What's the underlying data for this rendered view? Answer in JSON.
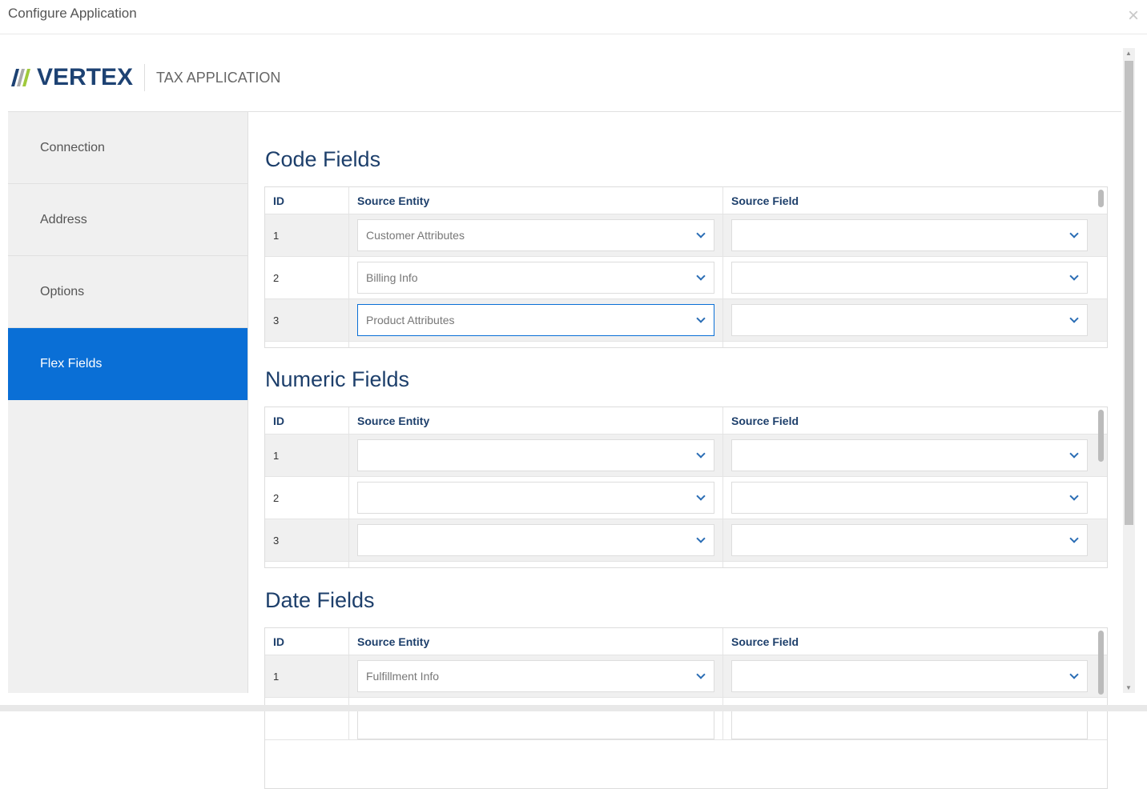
{
  "window": {
    "title": "Configure Application",
    "close": "×"
  },
  "brand": {
    "logo_text": "VERTEX",
    "app_name": "TAX APPLICATION"
  },
  "sidebar": {
    "items": [
      {
        "label": "Connection"
      },
      {
        "label": "Address"
      },
      {
        "label": "Options"
      },
      {
        "label": "Flex Fields",
        "active": true
      }
    ]
  },
  "columns": {
    "id": "ID",
    "entity": "Source Entity",
    "field": "Source Field"
  },
  "sections": [
    {
      "title": "Code Fields",
      "rows": [
        {
          "id": "1",
          "entity": "Customer Attributes",
          "field": ""
        },
        {
          "id": "2",
          "entity": "Billing Info",
          "field": ""
        },
        {
          "id": "3",
          "entity": "Product Attributes",
          "field": ""
        }
      ]
    },
    {
      "title": "Numeric Fields",
      "rows": [
        {
          "id": "1",
          "entity": "",
          "field": ""
        },
        {
          "id": "2",
          "entity": "",
          "field": ""
        },
        {
          "id": "3",
          "entity": "",
          "field": ""
        }
      ]
    },
    {
      "title": "Date Fields",
      "rows": [
        {
          "id": "1",
          "entity": "Fulfillment Info",
          "field": ""
        }
      ]
    }
  ],
  "colors": {
    "accent": "#0a6fd6",
    "heading": "#1d3f6b",
    "brand": "#1d4273"
  }
}
